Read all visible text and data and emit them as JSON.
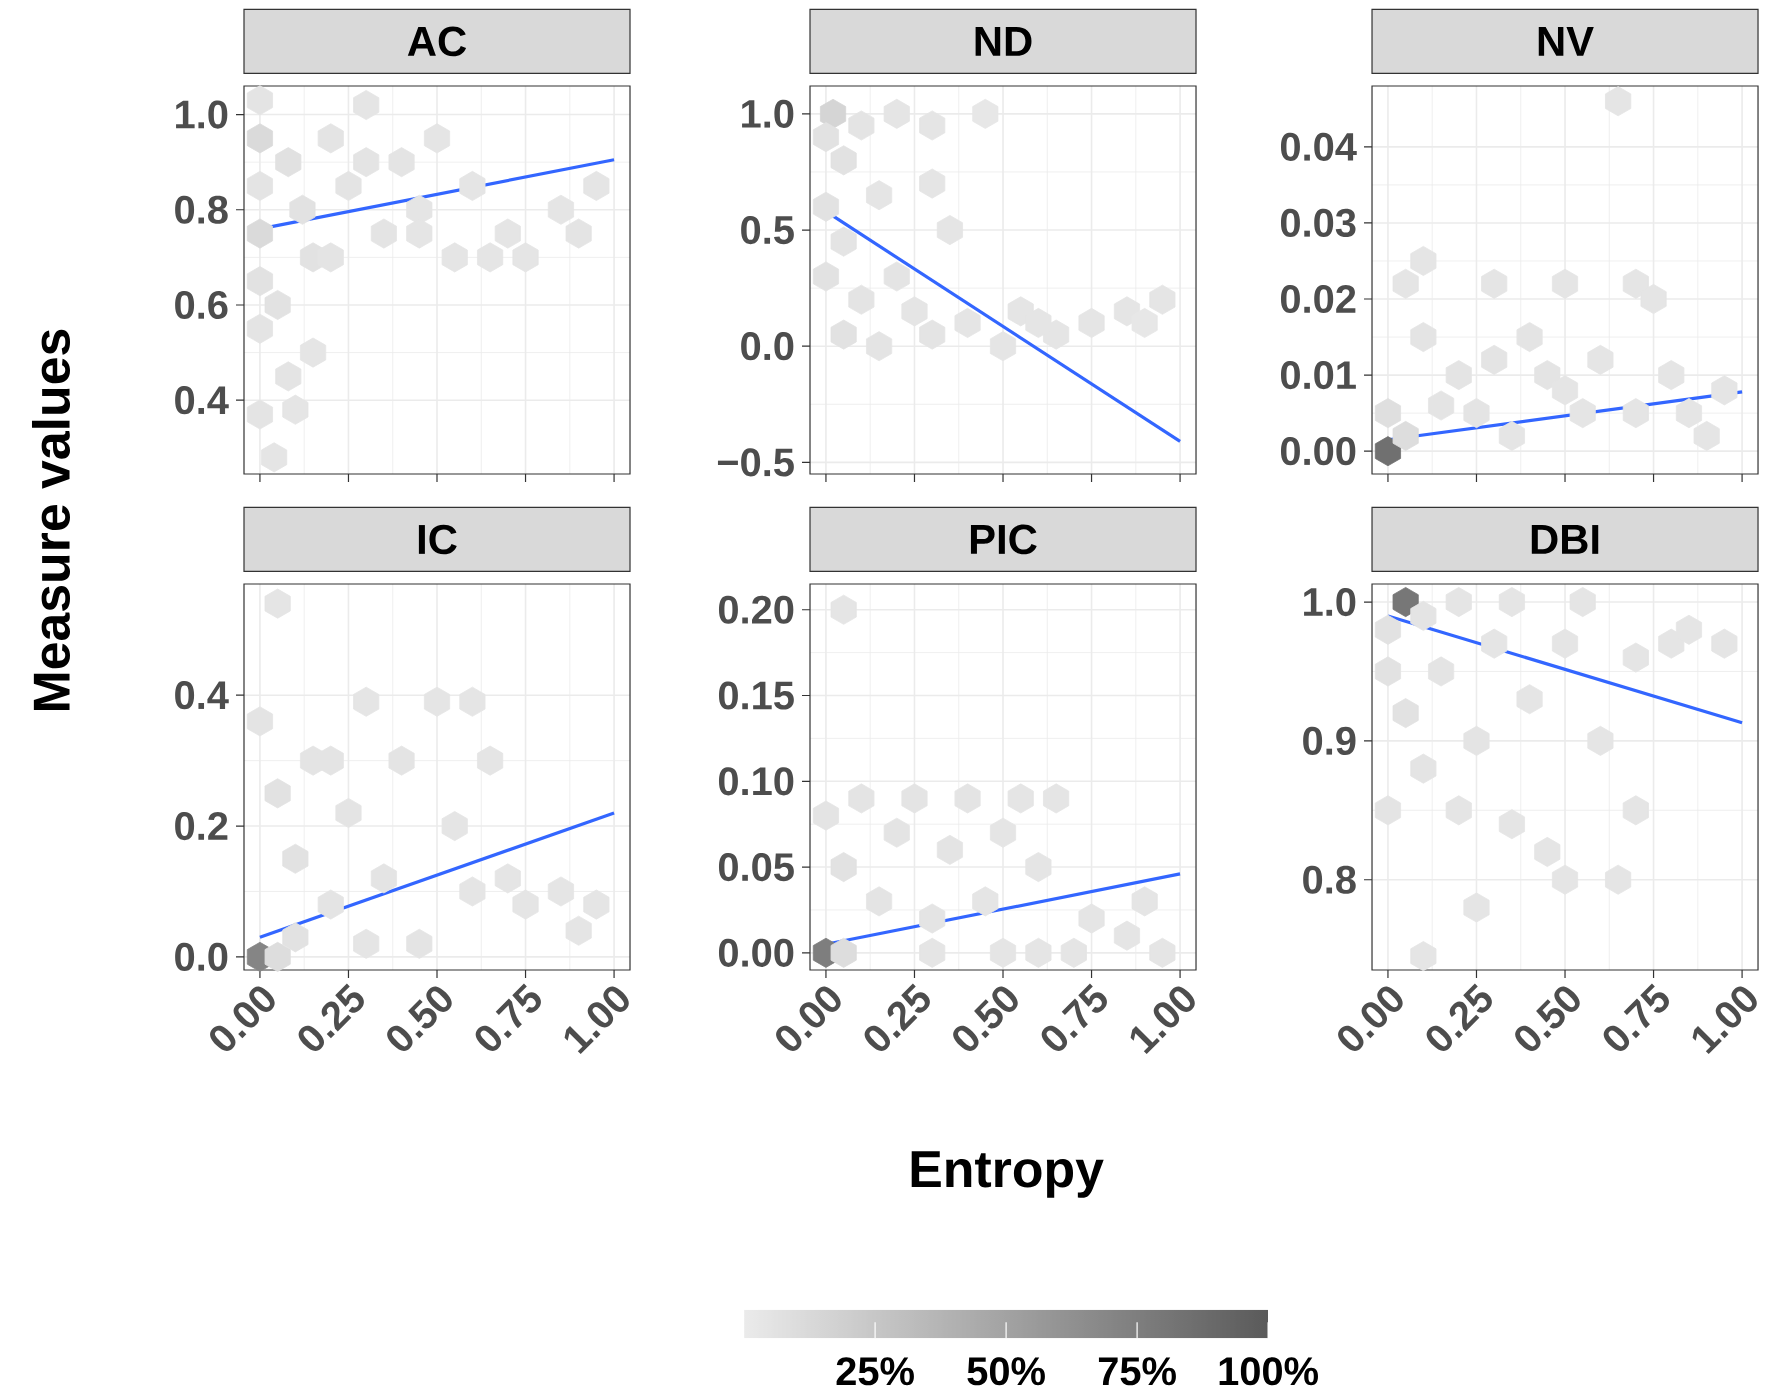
{
  "chart_data": [
    {
      "type": "scatter",
      "title": "AC",
      "ylabel": "Measure values",
      "xlim": [
        -0.045,
        1.045
      ],
      "ylim": [
        0.245,
        1.06
      ],
      "grid": true,
      "tick_labels": "y",
      "xticks": [
        0,
        0.25,
        0.5,
        0.75,
        1
      ],
      "yticks": [
        {
          "value": 0.4,
          "label": "0.4"
        },
        {
          "value": 0.6,
          "label": "0.6"
        },
        {
          "value": 0.8,
          "label": "0.8"
        },
        {
          "value": 1.0,
          "label": "1.0"
        }
      ],
      "series": [
        {
          "x": [
            0,
            0,
            0,
            0,
            0,
            0,
            0,
            0.04,
            0.08,
            0.08,
            0.12,
            0.15,
            0.2,
            0.25,
            0.3,
            0.35,
            0.4,
            0.45,
            0.5,
            0.55,
            0.6,
            0.7,
            0.85,
            0.9,
            0.95,
            0.1,
            0.15,
            0.05,
            0.2,
            0.3,
            0.45,
            0.65,
            0.75
          ],
          "values": [
            1.03,
            0.95,
            0.85,
            0.75,
            0.65,
            0.55,
            0.37,
            0.28,
            0.45,
            0.9,
            0.8,
            0.7,
            0.95,
            0.85,
            1.02,
            0.75,
            0.9,
            0.8,
            0.95,
            0.7,
            0.85,
            0.75,
            0.8,
            0.75,
            0.85,
            0.38,
            0.5,
            0.6,
            0.7,
            0.9,
            0.75,
            0.7,
            0.7
          ],
          "colors": [
            "#e4e4e4",
            "#dadada",
            "#e4e4e4",
            "#dadada",
            "#e2e2e2",
            "#e4e4e4",
            "#e4e4e4",
            "#e5e5e5",
            "#e4e4e4",
            "#e1e1e1",
            "#e2e2e2",
            "#e2e2e2",
            "#e4e4e4",
            "#e4e4e4",
            "#e5e5e5",
            "#e4e4e4",
            "#e4e4e4",
            "#e5e5e5",
            "#e5e5e5",
            "#e5e5e5",
            "#e5e5e5",
            "#e5e5e5",
            "#e5e5e5",
            "#e4e4e4",
            "#e5e5e5",
            "#e5e5e5",
            "#e5e5e5",
            "#e2e2e2",
            "#e4e4e4",
            "#e4e4e4",
            "#e5e5e5",
            "#e5e5e5",
            "#e5e5e5"
          ]
        },
        {
          "type": "line",
          "color": "#3366ff",
          "x": [
            0,
            1
          ],
          "values": [
            0.76,
            0.905
          ]
        }
      ]
    },
    {
      "type": "scatter",
      "title": "ND",
      "xlim": [
        -0.045,
        1.045
      ],
      "ylim": [
        -0.55,
        1.12
      ],
      "grid": true,
      "tick_labels": "y",
      "xticks": [
        0,
        0.25,
        0.5,
        0.75,
        1
      ],
      "yticks": [
        {
          "value": -0.5,
          "label": "−0.5"
        },
        {
          "value": 0,
          "label": "0.0"
        },
        {
          "value": 0.5,
          "label": "0.5"
        },
        {
          "value": 1.0,
          "label": "1.0"
        }
      ],
      "series": [
        {
          "x": [
            0.02,
            0,
            0.05,
            0.1,
            0.2,
            0.3,
            0.45,
            0,
            0.05,
            0,
            0.1,
            0.2,
            0.05,
            0.15,
            0.3,
            0.4,
            0.5,
            0.55,
            0.65,
            0.75,
            0.85,
            0.95,
            0.9,
            0.3,
            0.35,
            0.15,
            0.25,
            0.6
          ],
          "values": [
            1.0,
            0.9,
            0.8,
            0.95,
            1.0,
            0.95,
            1.0,
            0.6,
            0.45,
            0.3,
            0.2,
            0.3,
            0.05,
            0.0,
            0.05,
            0.1,
            0.0,
            0.15,
            0.05,
            0.1,
            0.15,
            0.2,
            0.1,
            0.7,
            0.5,
            0.65,
            0.15,
            0.1
          ],
          "colors": [
            "#d5d5d5",
            "#e2e2e2",
            "#e2e2e2",
            "#e4e4e4",
            "#e5e5e5",
            "#e5e5e5",
            "#e7e7e7",
            "#e2e2e2",
            "#e4e4e4",
            "#e2e2e2",
            "#e4e4e4",
            "#e4e4e4",
            "#e2e2e2",
            "#e4e4e4",
            "#e4e4e4",
            "#e5e5e5",
            "#e5e5e5",
            "#e5e5e5",
            "#e5e5e5",
            "#e5e5e5",
            "#e5e5e5",
            "#e5e5e5",
            "#e7e7e7",
            "#e5e5e5",
            "#e5e5e5",
            "#e5e5e5",
            "#e5e5e5",
            "#e5e5e5"
          ]
        },
        {
          "type": "line",
          "color": "#3366ff",
          "x": [
            0,
            1
          ],
          "values": [
            0.58,
            -0.41
          ]
        }
      ]
    },
    {
      "type": "scatter",
      "title": "NV",
      "xlim": [
        -0.045,
        1.045
      ],
      "ylim": [
        -0.003,
        0.048
      ],
      "grid": true,
      "tick_labels": "y",
      "xticks": [
        0,
        0.25,
        0.5,
        0.75,
        1
      ],
      "yticks": [
        {
          "value": 0,
          "label": "0.00"
        },
        {
          "value": 0.01,
          "label": "0.01"
        },
        {
          "value": 0.02,
          "label": "0.02"
        },
        {
          "value": 0.03,
          "label": "0.03"
        },
        {
          "value": 0.04,
          "label": "0.04"
        }
      ],
      "series": [
        {
          "x": [
            0,
            0,
            0.05,
            0.05,
            0.1,
            0.1,
            0.2,
            0.25,
            0.3,
            0.35,
            0.4,
            0.45,
            0.5,
            0.55,
            0.6,
            0.65,
            0.7,
            0.7,
            0.75,
            0.8,
            0.85,
            0.9,
            0.95,
            0.3,
            0.15,
            0.5
          ],
          "values": [
            0.0,
            0.005,
            0.002,
            0.022,
            0.025,
            0.015,
            0.01,
            0.005,
            0.012,
            0.002,
            0.015,
            0.01,
            0.022,
            0.005,
            0.012,
            0.046,
            0.005,
            0.022,
            0.02,
            0.01,
            0.005,
            0.002,
            0.008,
            0.022,
            0.006,
            0.008
          ],
          "colors": [
            "#707070",
            "#dfdfdf",
            "#dddddd",
            "#e5e5e5",
            "#e5e5e5",
            "#e4e4e4",
            "#e4e4e4",
            "#e4e4e4",
            "#e4e4e4",
            "#e5e5e5",
            "#e4e4e4",
            "#e4e4e4",
            "#e5e5e5",
            "#e5e5e5",
            "#e5e5e5",
            "#e5e5e5",
            "#e5e5e5",
            "#e5e5e5",
            "#e5e5e5",
            "#e5e5e5",
            "#e5e5e5",
            "#e5e5e5",
            "#e5e5e5",
            "#e5e5e5",
            "#e4e4e4",
            "#e5e5e5"
          ]
        },
        {
          "type": "line",
          "color": "#3366ff",
          "x": [
            0,
            1
          ],
          "values": [
            0.0015,
            0.0078
          ]
        }
      ]
    },
    {
      "type": "scatter",
      "title": "IC",
      "xlim": [
        -0.045,
        1.045
      ],
      "ylim": [
        -0.02,
        0.57
      ],
      "grid": true,
      "xticks": [
        {
          "value": 0,
          "label": "0.00"
        },
        {
          "value": 0.25,
          "label": "0.25"
        },
        {
          "value": 0.5,
          "label": "0.50"
        },
        {
          "value": 0.75,
          "label": "0.75"
        },
        {
          "value": 1,
          "label": "1.00"
        }
      ],
      "yticks": [
        {
          "value": 0,
          "label": "0.0"
        },
        {
          "value": 0.2,
          "label": "0.2"
        },
        {
          "value": 0.4,
          "label": "0.4"
        }
      ],
      "series": [
        {
          "x": [
            0,
            0.05,
            0.1,
            0.05,
            0,
            0.05,
            0.1,
            0.15,
            0.2,
            0.25,
            0.3,
            0.35,
            0.4,
            0.45,
            0.5,
            0.55,
            0.6,
            0.65,
            0.7,
            0.75,
            0.85,
            0.9,
            0.95,
            0.3,
            0.6,
            0.2
          ],
          "values": [
            0,
            0,
            0.03,
            0.54,
            0.36,
            0.25,
            0.15,
            0.3,
            0.08,
            0.22,
            0.39,
            0.12,
            0.3,
            0.02,
            0.39,
            0.2,
            0.39,
            0.3,
            0.12,
            0.08,
            0.1,
            0.04,
            0.08,
            0.02,
            0.1,
            0.3
          ],
          "colors": [
            "#858585",
            "#dddddd",
            "#e2e2e2",
            "#e5e5e5",
            "#e4e4e4",
            "#e2e2e2",
            "#e2e2e2",
            "#e4e4e4",
            "#e4e4e4",
            "#e4e4e4",
            "#e5e5e5",
            "#e4e4e4",
            "#e4e4e4",
            "#e4e4e4",
            "#e5e5e5",
            "#e5e5e5",
            "#e5e5e5",
            "#e5e5e5",
            "#e5e5e5",
            "#e5e5e5",
            "#e5e5e5",
            "#e5e5e5",
            "#e5e5e5",
            "#e5e5e5",
            "#e5e5e5",
            "#e4e4e4"
          ]
        },
        {
          "type": "line",
          "color": "#3366ff",
          "x": [
            0,
            1
          ],
          "values": [
            0.03,
            0.22
          ]
        }
      ]
    },
    {
      "type": "scatter",
      "title": "PIC",
      "xlabel": "Entropy",
      "xlim": [
        -0.045,
        1.045
      ],
      "ylim": [
        -0.01,
        0.215
      ],
      "grid": true,
      "clim": [
        0,
        100
      ],
      "cticks": [
        {
          "value": 25,
          "label": "25%"
        },
        {
          "value": 50,
          "label": "50%"
        },
        {
          "value": 75,
          "label": "75%"
        },
        {
          "value": 100,
          "label": "100%"
        }
      ],
      "xticks": [
        {
          "value": 0,
          "label": "0.00"
        },
        {
          "value": 0.25,
          "label": "0.25"
        },
        {
          "value": 0.5,
          "label": "0.50"
        },
        {
          "value": 0.75,
          "label": "0.75"
        },
        {
          "value": 1,
          "label": "1.00"
        }
      ],
      "yticks": [
        {
          "value": 0,
          "label": "0.00"
        },
        {
          "value": 0.05,
          "label": "0.05"
        },
        {
          "value": 0.1,
          "label": "0.10"
        },
        {
          "value": 0.15,
          "label": "0.15"
        },
        {
          "value": 0.2,
          "label": "0.20"
        }
      ],
      "series": [
        {
          "x": [
            0,
            0.05,
            0.05,
            0,
            0.05,
            0.1,
            0.15,
            0.2,
            0.25,
            0.3,
            0.35,
            0.4,
            0.45,
            0.5,
            0.55,
            0.6,
            0.65,
            0.7,
            0.75,
            0.85,
            0.9,
            0.95,
            0.3,
            0.5,
            0.6
          ],
          "values": [
            0,
            0,
            0.2,
            0.08,
            0.05,
            0.09,
            0.03,
            0.07,
            0.09,
            0.02,
            0.06,
            0.09,
            0.03,
            0.07,
            0.09,
            0.05,
            0.09,
            0.0,
            0.02,
            0.01,
            0.03,
            0.0,
            0.0,
            0.0,
            0.0
          ],
          "colors": [
            "#7e7e7e",
            "#dddddd",
            "#e5e5e5",
            "#e4e4e4",
            "#e2e2e2",
            "#e4e4e4",
            "#e4e4e4",
            "#e4e4e4",
            "#e4e4e4",
            "#e4e4e4",
            "#e4e4e4",
            "#e4e4e4",
            "#e5e5e5",
            "#e5e5e5",
            "#e5e5e5",
            "#e5e5e5",
            "#e5e5e5",
            "#e5e5e5",
            "#e5e5e5",
            "#e5e5e5",
            "#e5e5e5",
            "#e5e5e5",
            "#e5e5e5",
            "#e5e5e5",
            "#e5e5e5"
          ]
        },
        {
          "type": "line",
          "color": "#3366ff",
          "x": [
            0,
            1
          ],
          "values": [
            0.005,
            0.046
          ]
        }
      ]
    },
    {
      "type": "scatter",
      "title": "DBI",
      "xlim": [
        -0.045,
        1.045
      ],
      "ylim": [
        0.735,
        1.013
      ],
      "grid": true,
      "xticks": [
        {
          "value": 0,
          "label": "0.00"
        },
        {
          "value": 0.25,
          "label": "0.25"
        },
        {
          "value": 0.5,
          "label": "0.50"
        },
        {
          "value": 0.75,
          "label": "0.75"
        },
        {
          "value": 1,
          "label": "1.00"
        }
      ],
      "yticks": [
        {
          "value": 0.8,
          "label": "0.8"
        },
        {
          "value": 0.9,
          "label": "0.9"
        },
        {
          "value": 1.0,
          "label": "1.0"
        }
      ],
      "series": [
        {
          "x": [
            0.05,
            0,
            0.1,
            0,
            0.05,
            0,
            0.1,
            0.15,
            0.2,
            0.25,
            0.3,
            0.35,
            0.35,
            0.4,
            0.45,
            0.5,
            0.5,
            0.55,
            0.6,
            0.65,
            0.7,
            0.7,
            0.8,
            0.85,
            0.95,
            0.25,
            0.1,
            0.2
          ],
          "values": [
            1.0,
            0.98,
            0.99,
            0.95,
            0.92,
            0.85,
            0.88,
            0.95,
            1.0,
            0.9,
            0.97,
            1.0,
            0.84,
            0.93,
            0.82,
            0.97,
            0.8,
            1.0,
            0.9,
            0.8,
            0.85,
            0.96,
            0.97,
            0.98,
            0.97,
            0.78,
            0.745,
            0.85
          ],
          "colors": [
            "#777777",
            "#e2e2e2",
            "#e4e4e4",
            "#e2e2e2",
            "#e2e2e2",
            "#e4e4e4",
            "#e4e4e4",
            "#e4e4e4",
            "#e5e5e5",
            "#e4e4e4",
            "#e5e5e5",
            "#e5e5e5",
            "#e5e5e5",
            "#e5e5e5",
            "#e5e5e5",
            "#e5e5e5",
            "#e5e5e5",
            "#e5e5e5",
            "#e5e5e5",
            "#e5e5e5",
            "#e5e5e5",
            "#e5e5e5",
            "#e5e5e5",
            "#e5e5e5",
            "#e5e5e5",
            "#e5e5e5",
            "#e5e5e5",
            "#e5e5e5"
          ]
        },
        {
          "type": "line",
          "color": "#3366ff",
          "x": [
            0,
            1
          ],
          "values": [
            0.99,
            0.913
          ]
        }
      ]
    }
  ]
}
